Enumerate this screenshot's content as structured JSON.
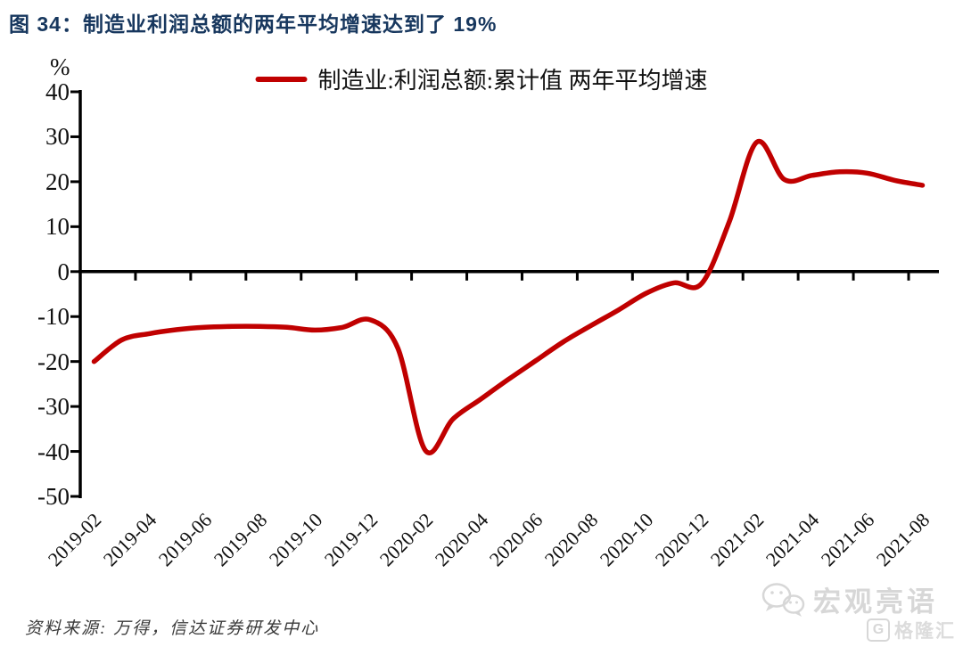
{
  "figure": {
    "title": "图 34：制造业利润总额的两年平均增速达到了 19%",
    "unit_label": "%",
    "legend_label": "制造业:利润总额:累计值 两年平均增速",
    "source_note": "资料来源: 万得，信达证券研发中心",
    "colors": {
      "line": "#c00000",
      "title": "#17375e",
      "axis": "#000000",
      "watermark": "#d7d7d7"
    }
  },
  "watermark": {
    "brand_text": "宏观亮语",
    "logo_letter": "G",
    "logo_text": "格隆汇"
  },
  "chart_data": {
    "type": "line",
    "title": "制造业利润总额的两年平均增速达到了19%",
    "grid": false,
    "legend_position": "top-center",
    "y_unit": "%",
    "ylim": [
      -50,
      40
    ],
    "y_ticks": [
      40,
      30,
      20,
      10,
      0,
      -10,
      -20,
      -30,
      -40,
      -50
    ],
    "x_tick_labels": [
      "2019-02",
      "2019-04",
      "2019-06",
      "2019-08",
      "2019-10",
      "2019-12",
      "2020-02",
      "2020-04",
      "2020-06",
      "2020-08",
      "2020-10",
      "2020-12",
      "2021-02",
      "2021-04",
      "2021-06",
      "2021-08"
    ],
    "series": [
      {
        "name": "制造业:利润总额:累计值 两年平均增速",
        "color": "#c00000",
        "x": [
          "2019-02",
          "2019-03",
          "2019-04",
          "2019-05",
          "2019-06",
          "2019-07",
          "2019-08",
          "2019-09",
          "2019-10",
          "2019-11",
          "2019-12",
          "2020-01",
          "2020-02",
          "2020-03",
          "2020-04",
          "2020-05",
          "2020-06",
          "2020-07",
          "2020-08",
          "2020-09",
          "2020-10",
          "2020-11",
          "2020-12",
          "2021-01",
          "2021-02",
          "2021-03",
          "2021-04",
          "2021-05",
          "2021-06",
          "2021-07",
          "2021-08"
        ],
        "values": [
          -20.0,
          -15.2,
          -13.8,
          -12.9,
          -12.4,
          -12.2,
          -12.2,
          -12.4,
          -13.0,
          -12.4,
          -10.7,
          -17.0,
          -39.8,
          -32.8,
          -28.4,
          -24.0,
          -19.8,
          -15.6,
          -12.0,
          -8.5,
          -4.8,
          -2.5,
          -2.7,
          11.0,
          28.8,
          20.5,
          21.4,
          22.2,
          21.9,
          20.3,
          19.2
        ]
      }
    ]
  }
}
